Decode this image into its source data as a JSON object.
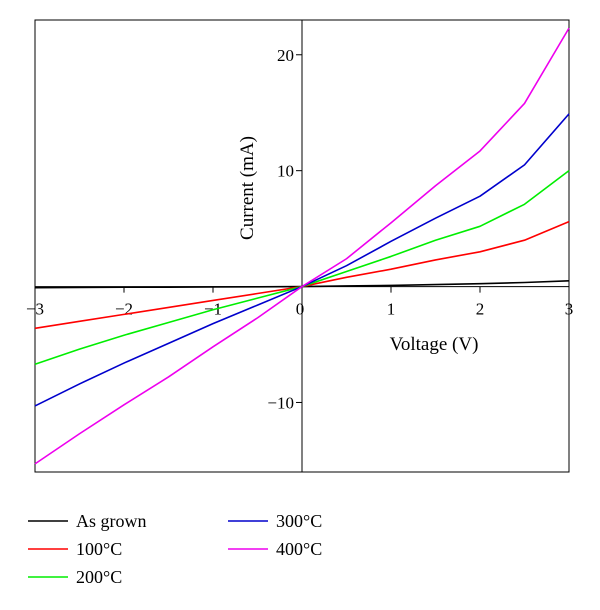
{
  "chart_data": {
    "type": "line",
    "title": "",
    "xlabel": "Voltage (V)",
    "ylabel": "Current (mA)",
    "xlim": [
      -3,
      3
    ],
    "ylim": [
      -16,
      23
    ],
    "xticks": [
      -3,
      -2,
      -1,
      0,
      1,
      2,
      3
    ],
    "xtick_labels": [
      "−3",
      "−2",
      "−1",
      "0",
      "1",
      "2",
      "3"
    ],
    "yticks": [
      -10,
      0,
      10,
      20
    ],
    "ytick_labels": [
      "−10",
      "0",
      "10",
      "20"
    ],
    "grid": false,
    "legend_position": "bottom",
    "x": [
      -3,
      -2.5,
      -2,
      -1.5,
      -1,
      -0.5,
      0,
      0.5,
      1,
      1.5,
      2,
      2.5,
      3
    ],
    "series": [
      {
        "name": "As grown",
        "color": "#000000",
        "values": [
          -0.1,
          -0.08,
          -0.06,
          -0.05,
          -0.03,
          -0.02,
          0,
          0.05,
          0.1,
          0.17,
          0.25,
          0.35,
          0.5
        ]
      },
      {
        "name": "100°C",
        "color": "#ff0000",
        "values": [
          -3.6,
          -3.0,
          -2.4,
          -1.8,
          -1.2,
          -0.6,
          0,
          0.8,
          1.5,
          2.3,
          3.0,
          4.0,
          5.6
        ]
      },
      {
        "name": "200°C",
        "color": "#00ee00",
        "values": [
          -6.7,
          -5.4,
          -4.2,
          -3.1,
          -2.0,
          -1.0,
          0,
          1.3,
          2.6,
          4.0,
          5.2,
          7.1,
          10.0
        ]
      },
      {
        "name": "300°C",
        "color": "#0000cc",
        "values": [
          -10.3,
          -8.4,
          -6.6,
          -4.9,
          -3.2,
          -1.6,
          0,
          1.8,
          3.9,
          5.9,
          7.8,
          10.5,
          14.9
        ]
      },
      {
        "name": "400°C",
        "color": "#ee00ee",
        "values": [
          -15.3,
          -12.7,
          -10.2,
          -7.8,
          -5.2,
          -2.7,
          0,
          2.4,
          5.5,
          8.7,
          11.7,
          15.8,
          22.3
        ]
      }
    ]
  }
}
